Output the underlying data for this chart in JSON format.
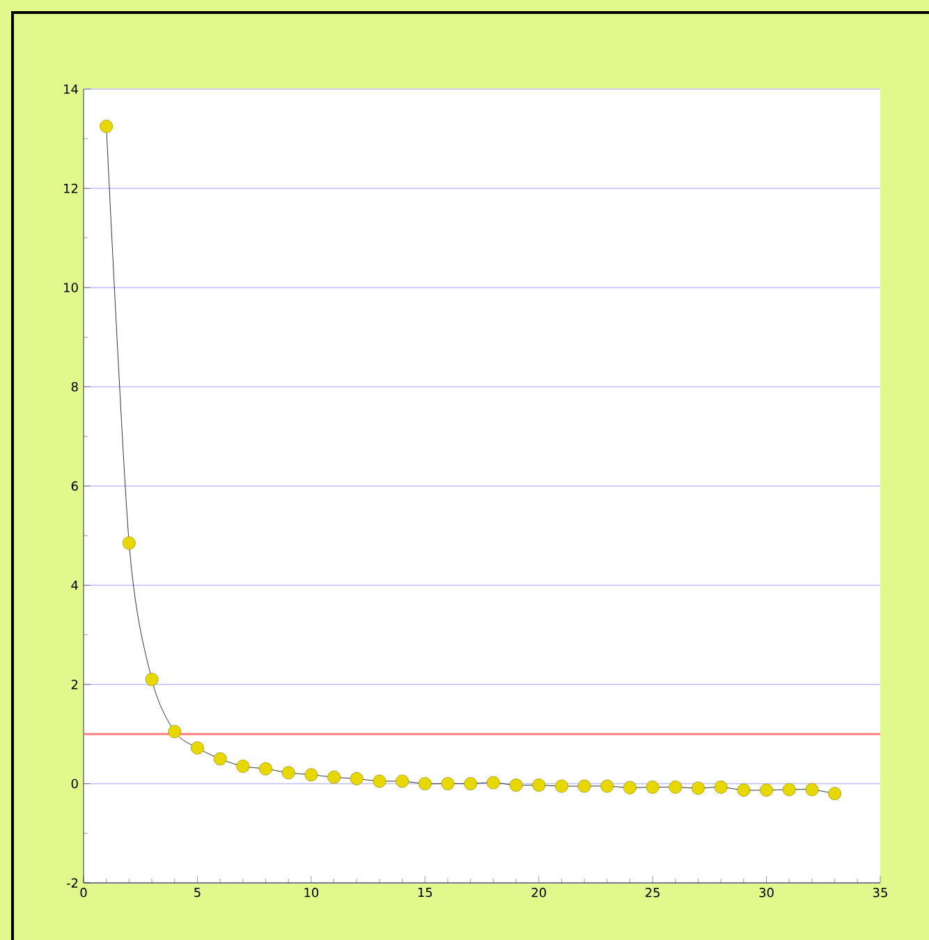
{
  "chart_data": {
    "type": "line",
    "x": [
      1,
      2,
      3,
      4,
      5,
      6,
      7,
      8,
      9,
      10,
      11,
      12,
      13,
      14,
      15,
      16,
      17,
      18,
      19,
      20,
      21,
      22,
      23,
      24,
      25,
      26,
      27,
      28,
      29,
      30,
      31,
      32,
      33
    ],
    "series": [
      {
        "color": "#e6d800",
        "values": [
          13.25,
          4.85,
          2.1,
          1.05,
          0.72,
          0.5,
          0.35,
          0.3,
          0.22,
          0.18,
          0.13,
          0.1,
          0.05,
          0.05,
          0.0,
          0.0,
          0.0,
          0.02,
          -0.03,
          -0.03,
          -0.05,
          -0.05,
          -0.05,
          -0.08,
          -0.07,
          -0.07,
          -0.09,
          -0.07,
          -0.13,
          -0.13,
          -0.12,
          -0.12,
          -0.2
        ]
      }
    ],
    "xlim": [
      0,
      35
    ],
    "ylim": [
      -2,
      14
    ],
    "xticks": [
      0,
      5,
      10,
      15,
      20,
      25,
      30,
      35
    ],
    "yticks": [
      -2,
      0,
      2,
      4,
      6,
      8,
      10,
      12,
      14
    ],
    "ref_lines": [
      {
        "axis": "y",
        "value": 1,
        "color": "#ff7f7f"
      }
    ],
    "grid": "y",
    "marker": "circle",
    "line_style": "solid"
  }
}
